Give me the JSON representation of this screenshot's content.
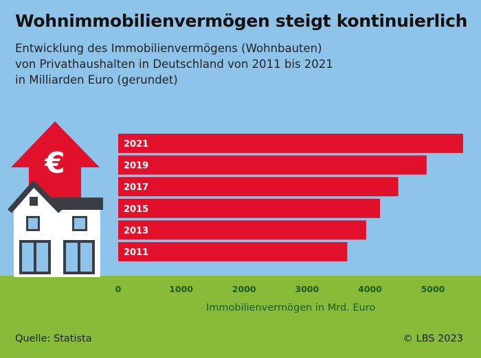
{
  "title": "Wohnimmobilienvermögen steigt kontinuierlich",
  "subtitle_lines": [
    "Entwicklung des Immobilienvermögens (Wohnbauten)",
    "von Privathaushalten in Deutschland von 2011 bis 2021",
    "in Milliarden Euro (gerundet)"
  ],
  "source": "Quelle: Statista",
  "copyright": "© LBS 2023",
  "icons": {
    "house": "house-icon",
    "arrow": "up-arrow-icon",
    "currency": "euro-icon"
  },
  "colors": {
    "background": "#8ec3ea",
    "ground": "#88bb37",
    "bar": "#e2112b",
    "axis_text": "#1d5b1f"
  },
  "chart_data": {
    "type": "bar",
    "orientation": "horizontal",
    "categories": [
      "2021",
      "2019",
      "2017",
      "2015",
      "2013",
      "2011"
    ],
    "values": [
      5480,
      4900,
      4450,
      4160,
      3940,
      3640
    ],
    "xlabel": "Immobilienvermögen in Mrd. Euro",
    "ylabel": "",
    "xlim": [
      0,
      5500
    ],
    "xticks": [
      "0",
      "1000",
      "2000",
      "3000",
      "4000",
      "5000"
    ],
    "grid": false,
    "legend": "none"
  }
}
